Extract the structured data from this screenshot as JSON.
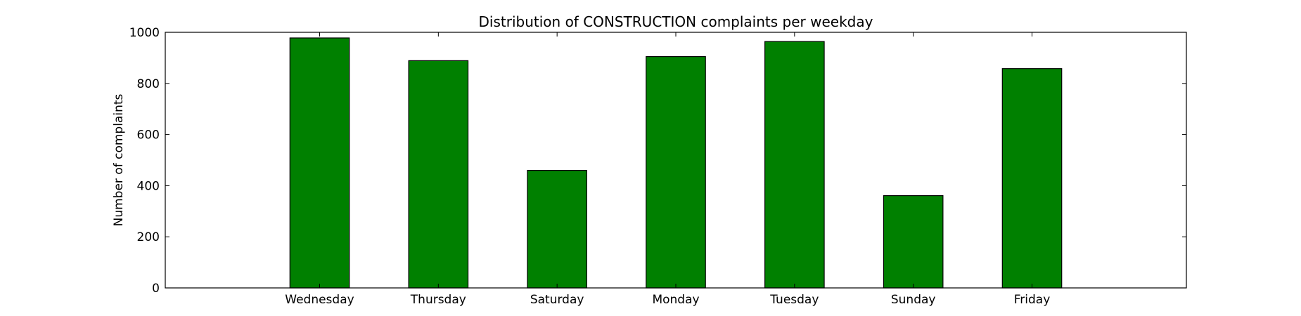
{
  "chart_data": {
    "type": "bar",
    "title": "Distribution of  CONSTRUCTION complaints per weekday",
    "xlabel": "",
    "ylabel": "Number of complaints",
    "categories": [
      "Wednesday",
      "Thursday",
      "Saturday",
      "Monday",
      "Tuesday",
      "Sunday",
      "Friday"
    ],
    "values": [
      978,
      889,
      460,
      905,
      964,
      361,
      858
    ],
    "ylim": [
      0,
      1000
    ],
    "yticks": [
      0,
      200,
      400,
      600,
      800,
      1000
    ],
    "colors": {
      "bar": "#008000"
    },
    "grid": false,
    "legend": "none"
  }
}
